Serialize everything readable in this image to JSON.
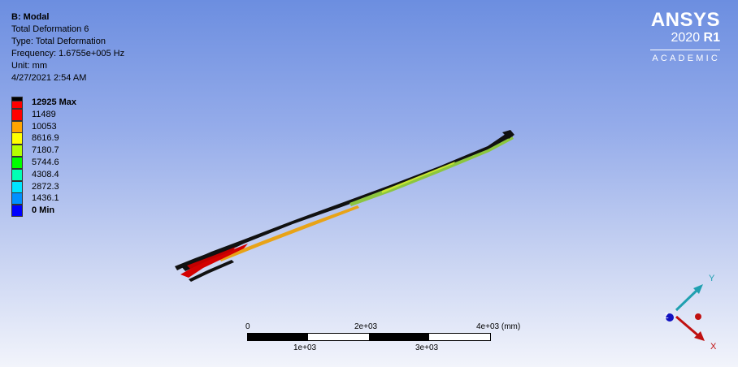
{
  "info": {
    "title": "B: Modal",
    "result": "Total Deformation 6",
    "type": "Type: Total Deformation",
    "frequency": "Frequency: 1.6755e+005 Hz",
    "unit": "Unit: mm",
    "date": "4/27/2021 2:54 AM"
  },
  "legend": {
    "entries": [
      {
        "label": "12925 Max",
        "color": "#ff0000"
      },
      {
        "label": "11489",
        "color": "#ff0000"
      },
      {
        "label": "10053",
        "color": "#ffa500"
      },
      {
        "label": "8616.9",
        "color": "#ffff00"
      },
      {
        "label": "7180.7",
        "color": "#b4ff00"
      },
      {
        "label": "5744.6",
        "color": "#00ff00"
      },
      {
        "label": "4308.4",
        "color": "#00ffb4"
      },
      {
        "label": "2872.3",
        "color": "#00e4ff"
      },
      {
        "label": "1436.1",
        "color": "#0090ff"
      },
      {
        "label": "0 Min",
        "color": "#0000ff"
      }
    ]
  },
  "logo": {
    "brand": "ANSYS",
    "version_year": "2020",
    "version_release": "R1",
    "edition": "ACADEMIC"
  },
  "scale": {
    "top_labels": [
      "0",
      "2e+03",
      "4e+03 (mm)"
    ],
    "bottom_labels": [
      "1e+03",
      "3e+03"
    ]
  },
  "triad": {
    "y_label": "Y",
    "x_label": "X",
    "z_label": "Z",
    "y_color": "#20a0b0",
    "x_color": "#c01010",
    "z_color": "#1010c0"
  }
}
